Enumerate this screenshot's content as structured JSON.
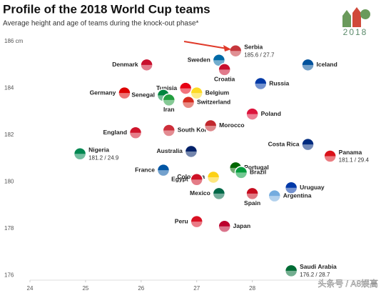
{
  "chart_data": {
    "type": "scatter",
    "title": "Profile of the 2018 World Cup teams",
    "subtitle": "Average height and age of teams during the knock-out phase*",
    "logo_text": "2018",
    "watermark": "头条号 / A8娱高",
    "xlim": [
      24,
      30.2
    ],
    "ylim": [
      175.8,
      186.4
    ],
    "xticks": [
      24,
      25,
      26,
      27,
      28
    ],
    "yticks": [
      176,
      178,
      180,
      182,
      184,
      {
        "value": 186,
        "label": "186 cm"
      }
    ],
    "points": [
      {
        "name": "Serbia",
        "x": 27.7,
        "y": 185.6,
        "color": "#c6363c",
        "note": "185.6 / 27.7"
      },
      {
        "name": "Denmark",
        "x": 26.1,
        "y": 185.0,
        "color": "#c8102e"
      },
      {
        "name": "Sweden",
        "x": 27.4,
        "y": 185.2,
        "color": "#006aa7"
      },
      {
        "name": "Croatia",
        "x": 27.5,
        "y": 184.8,
        "color": "#c8102e"
      },
      {
        "name": "Iceland",
        "x": 29.0,
        "y": 185.0,
        "color": "#02529c"
      },
      {
        "name": "Tunisia",
        "x": 26.8,
        "y": 184.0,
        "color": "#e70013"
      },
      {
        "name": "Senegal",
        "x": 26.4,
        "y": 183.7,
        "color": "#00853f"
      },
      {
        "name": "Belgium",
        "x": 27.0,
        "y": 183.8,
        "color": "#fdda24"
      },
      {
        "name": "Germany",
        "x": 25.7,
        "y": 183.8,
        "color": "#dd0000"
      },
      {
        "name": "Russia",
        "x": 28.15,
        "y": 184.2,
        "color": "#0039a6"
      },
      {
        "name": "Iran",
        "x": 26.5,
        "y": 183.5,
        "color": "#239f40"
      },
      {
        "name": "Switzerland",
        "x": 26.85,
        "y": 183.4,
        "color": "#d52b1e"
      },
      {
        "name": "Poland",
        "x": 28.0,
        "y": 182.9,
        "color": "#dc143c"
      },
      {
        "name": "South Korea",
        "x": 26.5,
        "y": 182.2,
        "color": "#cd2e3a"
      },
      {
        "name": "Morocco",
        "x": 27.25,
        "y": 182.4,
        "color": "#c1272d"
      },
      {
        "name": "England",
        "x": 25.9,
        "y": 182.1,
        "color": "#cf142b"
      },
      {
        "name": "Costa Rica",
        "x": 29.0,
        "y": 181.6,
        "color": "#002b7f"
      },
      {
        "name": "Panama",
        "x": 29.4,
        "y": 181.1,
        "color": "#da121a",
        "note": "181.1 / 29.4"
      },
      {
        "name": "Nigeria",
        "x": 24.9,
        "y": 181.2,
        "color": "#008751",
        "note": "181.2 / 24.9"
      },
      {
        "name": "Australia",
        "x": 26.9,
        "y": 181.3,
        "color": "#012169"
      },
      {
        "name": "France",
        "x": 26.4,
        "y": 180.5,
        "color": "#0055a4"
      },
      {
        "name": "Portugal",
        "x": 27.7,
        "y": 180.6,
        "color": "#006600"
      },
      {
        "name": "Brazil",
        "x": 27.8,
        "y": 180.4,
        "color": "#009c3b"
      },
      {
        "name": "Colombia",
        "x": 27.3,
        "y": 180.2,
        "color": "#fcd116"
      },
      {
        "name": "Egypt",
        "x": 27.0,
        "y": 180.1,
        "color": "#ce1126"
      },
      {
        "name": "Uruguay",
        "x": 28.7,
        "y": 179.75,
        "color": "#0038a8"
      },
      {
        "name": "Mexico",
        "x": 27.4,
        "y": 179.5,
        "color": "#006847"
      },
      {
        "name": "Spain",
        "x": 28.0,
        "y": 179.5,
        "color": "#c60b1e"
      },
      {
        "name": "Argentina",
        "x": 28.4,
        "y": 179.4,
        "color": "#74acdf"
      },
      {
        "name": "Peru",
        "x": 27.0,
        "y": 178.3,
        "color": "#d91023"
      },
      {
        "name": "Japan",
        "x": 27.5,
        "y": 178.1,
        "color": "#bc002d"
      },
      {
        "name": "Saudi Arabia",
        "x": 28.7,
        "y": 176.2,
        "color": "#006c35",
        "note": "176.2 / 28.7"
      }
    ]
  }
}
